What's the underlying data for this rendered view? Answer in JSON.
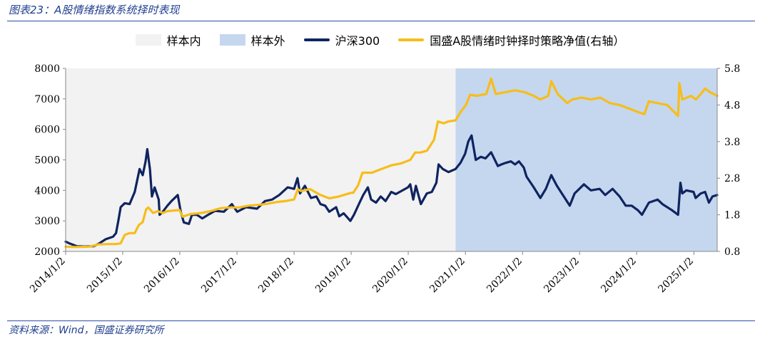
{
  "header": {
    "title": "图表23：A股情绪指数系统择时表现"
  },
  "footer": {
    "source": "资料来源：Wind，国盛证券研究所"
  },
  "colors": {
    "in_sample": "#f2f2f2",
    "out_sample": "#c5d7ee",
    "hs300": "#0f2460",
    "strategy": "#f7bd19",
    "title": "#1f3f8f"
  },
  "chart_data": {
    "type": "line",
    "legend": [
      {
        "label": "样本内",
        "kind": "area",
        "color": "#f2f2f2"
      },
      {
        "label": "样本外",
        "kind": "area",
        "color": "#c5d7ee"
      },
      {
        "label": "沪深300",
        "kind": "line",
        "color": "#0f2460"
      },
      {
        "label": "国盛A股情绪时钟择时策略净值(右轴）",
        "kind": "line",
        "color": "#f7bd19"
      }
    ],
    "legend_placement": "top",
    "x_range": [
      "2014-01-02",
      "2025-05-31"
    ],
    "x_tick_labels": [
      "2014/1/2",
      "2015/1/2",
      "2016/1/2",
      "2017/1/2",
      "2018/1/2",
      "2019/1/2",
      "2020/1/2",
      "2021/1/2",
      "2022/1/2",
      "2023/1/2",
      "2024/1/2",
      "2025/1/2"
    ],
    "y_left": {
      "ticks": [
        2000,
        3000,
        4000,
        5000,
        6000,
        7000,
        8000
      ],
      "range": [
        2000,
        8000
      ]
    },
    "y_right": {
      "ticks": [
        "0.8",
        "1.8",
        "2.8",
        "3.8",
        "4.8",
        "5.8"
      ],
      "range": [
        0.8,
        5.8
      ]
    },
    "shaded_regions": [
      {
        "label": "样本内",
        "start": "2014-01-02",
        "end": "2020-10-31"
      },
      {
        "label": "样本外",
        "start": "2020-10-31",
        "end": "2025-05-31"
      }
    ],
    "grid": false,
    "series": [
      {
        "name": "沪深300",
        "axis": "left",
        "points": [
          [
            "2014-01-02",
            2320
          ],
          [
            "2014-02-01",
            2250
          ],
          [
            "2014-03-15",
            2170
          ],
          [
            "2014-05-01",
            2160
          ],
          [
            "2014-07-01",
            2170
          ],
          [
            "2014-08-01",
            2250
          ],
          [
            "2014-09-15",
            2400
          ],
          [
            "2014-11-01",
            2480
          ],
          [
            "2014-11-20",
            2600
          ],
          [
            "2014-12-05",
            3000
          ],
          [
            "2014-12-20",
            3450
          ],
          [
            "2015-01-15",
            3580
          ],
          [
            "2015-02-15",
            3550
          ],
          [
            "2015-03-20",
            3950
          ],
          [
            "2015-04-20",
            4700
          ],
          [
            "2015-05-10",
            4500
          ],
          [
            "2015-05-28",
            4950
          ],
          [
            "2015-06-08",
            5350
          ],
          [
            "2015-06-25",
            4700
          ],
          [
            "2015-07-08",
            3800
          ],
          [
            "2015-07-25",
            4100
          ],
          [
            "2015-08-20",
            3700
          ],
          [
            "2015-08-26",
            3200
          ],
          [
            "2015-09-15",
            3300
          ],
          [
            "2015-10-15",
            3500
          ],
          [
            "2015-11-10",
            3650
          ],
          [
            "2015-12-20",
            3850
          ],
          [
            "2016-01-08",
            3300
          ],
          [
            "2016-01-28",
            2950
          ],
          [
            "2016-02-29",
            2900
          ],
          [
            "2016-03-20",
            3200
          ],
          [
            "2016-04-20",
            3200
          ],
          [
            "2016-05-25",
            3080
          ],
          [
            "2016-07-01",
            3200
          ],
          [
            "2016-08-15",
            3330
          ],
          [
            "2016-10-10",
            3300
          ],
          [
            "2016-11-30",
            3550
          ],
          [
            "2017-01-03",
            3300
          ],
          [
            "2017-03-01",
            3450
          ],
          [
            "2017-05-10",
            3400
          ],
          [
            "2017-06-30",
            3650
          ],
          [
            "2017-08-15",
            3700
          ],
          [
            "2017-09-29",
            3850
          ],
          [
            "2017-11-22",
            4100
          ],
          [
            "2018-01-02",
            4050
          ],
          [
            "2018-01-24",
            4400
          ],
          [
            "2018-02-09",
            3900
          ],
          [
            "2018-03-12",
            4150
          ],
          [
            "2018-04-20",
            3750
          ],
          [
            "2018-05-25",
            3800
          ],
          [
            "2018-06-20",
            3550
          ],
          [
            "2018-07-20",
            3500
          ],
          [
            "2018-08-15",
            3300
          ],
          [
            "2018-09-28",
            3450
          ],
          [
            "2018-10-18",
            3150
          ],
          [
            "2018-11-15",
            3250
          ],
          [
            "2018-12-28",
            3000
          ],
          [
            "2019-01-20",
            3200
          ],
          [
            "2019-02-25",
            3600
          ],
          [
            "2019-03-20",
            3850
          ],
          [
            "2019-04-19",
            4100
          ],
          [
            "2019-05-10",
            3700
          ],
          [
            "2019-06-10",
            3600
          ],
          [
            "2019-07-10",
            3800
          ],
          [
            "2019-08-10",
            3650
          ],
          [
            "2019-09-15",
            3950
          ],
          [
            "2019-10-15",
            3880
          ],
          [
            "2019-12-31",
            4100
          ],
          [
            "2020-01-15",
            4200
          ],
          [
            "2020-02-03",
            3700
          ],
          [
            "2020-02-20",
            4150
          ],
          [
            "2020-03-23",
            3550
          ],
          [
            "2020-04-30",
            3900
          ],
          [
            "2020-06-01",
            3950
          ],
          [
            "2020-06-30",
            4250
          ],
          [
            "2020-07-14",
            4850
          ],
          [
            "2020-08-10",
            4700
          ],
          [
            "2020-09-15",
            4600
          ],
          [
            "2020-10-31",
            4700
          ],
          [
            "2020-12-01",
            4900
          ],
          [
            "2020-12-31",
            5200
          ],
          [
            "2021-01-20",
            5600
          ],
          [
            "2021-02-10",
            5800
          ],
          [
            "2021-03-09",
            5000
          ],
          [
            "2021-04-10",
            5100
          ],
          [
            "2021-05-10",
            5050
          ],
          [
            "2021-06-15",
            5250
          ],
          [
            "2021-07-28",
            4800
          ],
          [
            "2021-08-20",
            4850
          ],
          [
            "2021-09-15",
            4900
          ],
          [
            "2021-10-20",
            4950
          ],
          [
            "2021-11-15",
            4850
          ],
          [
            "2021-12-10",
            4950
          ],
          [
            "2022-01-10",
            4750
          ],
          [
            "2022-01-28",
            4450
          ],
          [
            "2022-03-15",
            4100
          ],
          [
            "2022-04-26",
            3750
          ],
          [
            "2022-05-31",
            4050
          ],
          [
            "2022-07-05",
            4500
          ],
          [
            "2022-08-10",
            4150
          ],
          [
            "2022-10-31",
            3500
          ],
          [
            "2022-12-01",
            3900
          ],
          [
            "2023-01-30",
            4200
          ],
          [
            "2023-03-15",
            4000
          ],
          [
            "2023-05-10",
            4050
          ],
          [
            "2023-06-15",
            3850
          ],
          [
            "2023-08-01",
            4050
          ],
          [
            "2023-09-15",
            3800
          ],
          [
            "2023-10-24",
            3500
          ],
          [
            "2023-12-01",
            3500
          ],
          [
            "2024-01-10",
            3350
          ],
          [
            "2024-02-05",
            3200
          ],
          [
            "2024-03-20",
            3600
          ],
          [
            "2024-05-15",
            3700
          ],
          [
            "2024-06-15",
            3550
          ],
          [
            "2024-08-15",
            3350
          ],
          [
            "2024-09-23",
            3200
          ],
          [
            "2024-10-08",
            4250
          ],
          [
            "2024-10-20",
            3900
          ],
          [
            "2024-11-15",
            4000
          ],
          [
            "2024-12-31",
            3950
          ],
          [
            "2025-01-13",
            3750
          ],
          [
            "2025-02-15",
            3900
          ],
          [
            "2025-03-15",
            3950
          ],
          [
            "2025-04-08",
            3600
          ],
          [
            "2025-05-01",
            3800
          ],
          [
            "2025-05-31",
            3850
          ]
        ]
      },
      {
        "name": "国盛A股情绪时钟择时策略净值(右轴）",
        "axis": "right",
        "points": [
          [
            "2014-01-02",
            0.93
          ],
          [
            "2014-03-01",
            0.92
          ],
          [
            "2014-06-01",
            0.93
          ],
          [
            "2014-08-01",
            0.99
          ],
          [
            "2014-10-01",
            1.0
          ],
          [
            "2014-11-20",
            1.0
          ],
          [
            "2014-12-20",
            1.02
          ],
          [
            "2015-01-15",
            1.25
          ],
          [
            "2015-02-15",
            1.3
          ],
          [
            "2015-03-20",
            1.3
          ],
          [
            "2015-04-15",
            1.52
          ],
          [
            "2015-05-10",
            1.6
          ],
          [
            "2015-06-01",
            1.95
          ],
          [
            "2015-06-15",
            2.0
          ],
          [
            "2015-07-15",
            1.85
          ],
          [
            "2015-08-15",
            1.9
          ],
          [
            "2015-09-15",
            1.85
          ],
          [
            "2015-10-15",
            1.9
          ],
          [
            "2015-12-31",
            1.93
          ],
          [
            "2016-01-20",
            1.75
          ],
          [
            "2016-03-10",
            1.82
          ],
          [
            "2016-05-20",
            1.85
          ],
          [
            "2016-07-15",
            1.9
          ],
          [
            "2016-09-20",
            1.98
          ],
          [
            "2016-11-15",
            2.0
          ],
          [
            "2017-01-15",
            2.0
          ],
          [
            "2017-03-15",
            2.05
          ],
          [
            "2017-05-15",
            2.07
          ],
          [
            "2017-07-15",
            2.1
          ],
          [
            "2017-09-15",
            2.15
          ],
          [
            "2017-11-15",
            2.18
          ],
          [
            "2018-01-02",
            2.22
          ],
          [
            "2018-01-26",
            2.5
          ],
          [
            "2018-02-15",
            2.45
          ],
          [
            "2018-04-15",
            2.5
          ],
          [
            "2018-06-15",
            2.35
          ],
          [
            "2018-08-15",
            2.25
          ],
          [
            "2018-10-15",
            2.3
          ],
          [
            "2018-12-31",
            2.4
          ],
          [
            "2019-01-15",
            2.4
          ],
          [
            "2019-02-15",
            2.6
          ],
          [
            "2019-03-15",
            2.95
          ],
          [
            "2019-05-15",
            2.95
          ],
          [
            "2019-07-15",
            3.05
          ],
          [
            "2019-09-15",
            3.15
          ],
          [
            "2019-11-15",
            3.2
          ],
          [
            "2020-01-15",
            3.3
          ],
          [
            "2020-02-15",
            3.5
          ],
          [
            "2020-03-20",
            3.5
          ],
          [
            "2020-05-01",
            3.55
          ],
          [
            "2020-06-15",
            3.85
          ],
          [
            "2020-07-10",
            4.35
          ],
          [
            "2020-08-15",
            4.3
          ],
          [
            "2020-09-15",
            4.35
          ],
          [
            "2020-10-31",
            4.38
          ],
          [
            "2020-12-01",
            4.6
          ],
          [
            "2021-01-05",
            4.8
          ],
          [
            "2021-02-01",
            5.08
          ],
          [
            "2021-03-15",
            5.05
          ],
          [
            "2021-05-15",
            5.1
          ],
          [
            "2021-06-15",
            5.52
          ],
          [
            "2021-07-15",
            5.1
          ],
          [
            "2021-09-15",
            5.15
          ],
          [
            "2021-11-15",
            5.2
          ],
          [
            "2022-01-15",
            5.15
          ],
          [
            "2022-03-15",
            5.05
          ],
          [
            "2022-04-26",
            4.95
          ],
          [
            "2022-06-15",
            5.05
          ],
          [
            "2022-07-05",
            5.45
          ],
          [
            "2022-08-15",
            5.1
          ],
          [
            "2022-10-15",
            4.85
          ],
          [
            "2022-11-15",
            4.95
          ],
          [
            "2023-01-15",
            5.0
          ],
          [
            "2023-03-15",
            4.95
          ],
          [
            "2023-05-15",
            5.0
          ],
          [
            "2023-07-15",
            4.85
          ],
          [
            "2023-09-15",
            4.8
          ],
          [
            "2023-11-15",
            4.7
          ],
          [
            "2024-01-15",
            4.6
          ],
          [
            "2024-02-20",
            4.55
          ],
          [
            "2024-03-20",
            4.9
          ],
          [
            "2024-05-15",
            4.85
          ],
          [
            "2024-07-15",
            4.8
          ],
          [
            "2024-09-23",
            4.5
          ],
          [
            "2024-10-01",
            5.4
          ],
          [
            "2024-10-20",
            4.95
          ],
          [
            "2024-12-15",
            5.05
          ],
          [
            "2025-01-15",
            4.95
          ],
          [
            "2025-02-15",
            5.1
          ],
          [
            "2025-03-15",
            5.25
          ],
          [
            "2025-04-15",
            5.15
          ],
          [
            "2025-05-31",
            5.05
          ]
        ]
      }
    ]
  }
}
